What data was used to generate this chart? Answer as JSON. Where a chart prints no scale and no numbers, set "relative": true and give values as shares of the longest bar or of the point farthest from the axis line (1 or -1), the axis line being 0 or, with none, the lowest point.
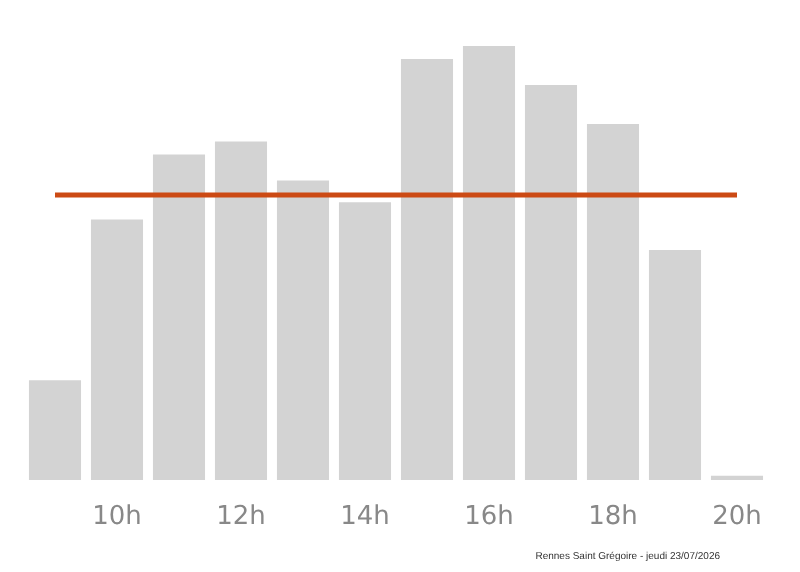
{
  "chart_data": {
    "type": "bar",
    "relative": true,
    "categories": [
      null,
      "10h",
      null,
      "12h",
      null,
      "14h",
      null,
      "16h",
      null,
      "18h",
      null,
      "20h"
    ],
    "values": [
      0.23,
      0.6,
      0.75,
      0.78,
      0.69,
      0.64,
      0.97,
      1,
      0.91,
      0.82,
      0.53,
      0.01
    ],
    "color": "#d3d3d3",
    "ref_lines": [
      {
        "axis": "y",
        "value": 0.66,
        "color": "#cc4a14"
      }
    ],
    "annotations": [
      "Rennes Saint Grégoire - jeudi 23/07/2026"
    ]
  }
}
